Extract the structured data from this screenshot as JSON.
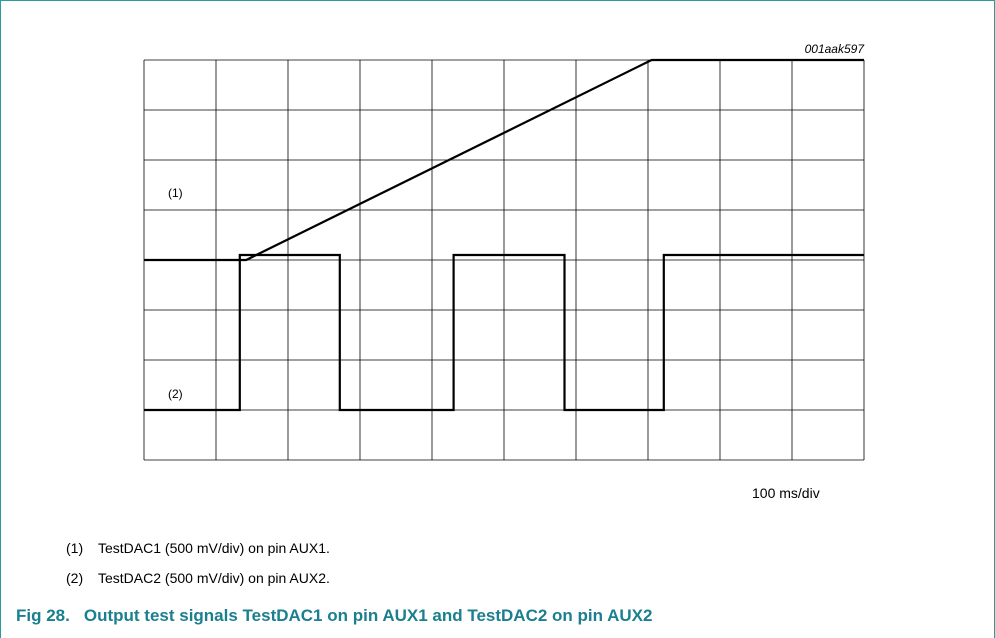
{
  "figure": {
    "id": "001aak597",
    "time_scale": "100 ms/div",
    "caption_number": "Fig 28.",
    "caption_text": "Output test signals TestDAC1 on pin AUX1 and TestDAC2 on pin AUX2",
    "border_color": "#2f9a9a",
    "caption_color": "#1a7f8e"
  },
  "traces": [
    {
      "marker": "(1)",
      "name": "TestDAC1",
      "note": "TestDAC1 (500 mV/div) on pin AUX1."
    },
    {
      "marker": "(2)",
      "name": "TestDAC2",
      "note": "TestDAC2 (500 mV/div) on pin AUX2."
    }
  ],
  "chart_data": {
    "type": "line",
    "grid": true,
    "x_divisions": 10,
    "y_divisions": 8,
    "series": [
      {
        "name": "TestDAC1",
        "x": [
          0,
          1.42,
          7.05,
          10
        ],
        "y": [
          4,
          4,
          8,
          8
        ]
      },
      {
        "name": "TestDAC2",
        "x": [
          0,
          1.33,
          1.33,
          2.72,
          2.72,
          4.3,
          4.3,
          5.84,
          5.84,
          7.22,
          7.22,
          10
        ],
        "y": [
          1,
          1,
          4.1,
          4.1,
          1,
          1,
          4.1,
          4.1,
          1,
          1,
          4.1,
          4.1
        ]
      }
    ]
  }
}
